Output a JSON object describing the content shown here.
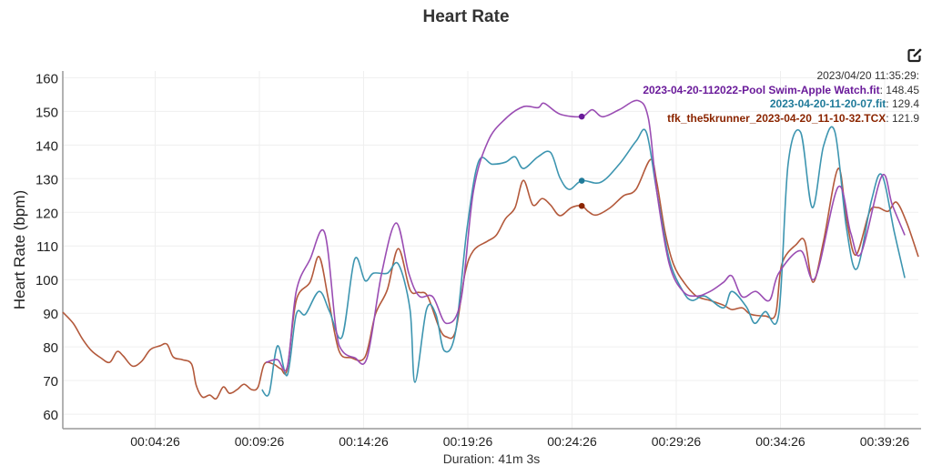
{
  "chart_data": {
    "type": "line",
    "title": "Heart Rate",
    "xlabel": "Duration: 41m 3s",
    "ylabel": "Heart Rate (bpm)",
    "x_unit": "minutes",
    "xlim": [
      0,
      41.05
    ],
    "ylim": [
      55.7,
      162
    ],
    "yticks": [
      60,
      70,
      80,
      90,
      100,
      110,
      120,
      130,
      140,
      150,
      160
    ],
    "xticks": [
      {
        "value": 4.433,
        "label": "00:04:26"
      },
      {
        "value": 9.433,
        "label": "00:09:26"
      },
      {
        "value": 14.433,
        "label": "00:14:26"
      },
      {
        "value": 19.433,
        "label": "00:19:26"
      },
      {
        "value": 24.433,
        "label": "00:24:26"
      },
      {
        "value": 29.433,
        "label": "00:29:26"
      },
      {
        "value": 34.433,
        "label": "00:34:26"
      },
      {
        "value": 39.433,
        "label": "00:39:26"
      }
    ],
    "grid": true,
    "legend": "top-right tooltip",
    "hover": {
      "x": 24.9,
      "timestamp": "2023/04/20 11:35:29:",
      "values": [
        "148.45",
        "129.4",
        "121.9"
      ]
    },
    "series": [
      {
        "name": "2023-04-20-112022-Pool Swim-Apple Watch.fit",
        "color": "#9a4db3",
        "label_color": "#6a1b9a",
        "x": [
          9.75,
          10.3,
          10.77,
          11.2,
          11.86,
          12.56,
          13.1,
          13.4,
          14.0,
          14.6,
          15.3,
          16.0,
          16.6,
          17.1,
          17.75,
          18.4,
          19.1,
          19.7,
          20.4,
          21.24,
          22.1,
          22.8,
          23.1,
          23.85,
          24.9,
          25.4,
          25.9,
          26.7,
          27.6,
          28.1,
          28.5,
          29.1,
          29.76,
          30.4,
          31.06,
          31.7,
          32.1,
          32.6,
          33.25,
          33.9,
          34.35,
          35.4,
          36.1,
          37.2,
          37.8,
          38.3,
          39.3,
          39.8,
          40.4
        ],
        "y": [
          75.4,
          76.2,
          74,
          96.5,
          106,
          114,
          85.7,
          78.9,
          76.8,
          76.8,
          101.9,
          116.8,
          101.9,
          95.1,
          94.9,
          87,
          93.8,
          126.2,
          141.1,
          147.8,
          151.4,
          151.1,
          152.4,
          149.2,
          148.45,
          150.5,
          148.4,
          150.5,
          153.2,
          147.8,
          126.2,
          104.6,
          96.5,
          95.1,
          96.5,
          99.2,
          101.1,
          94.9,
          96.5,
          93.8,
          101.9,
          108.6,
          100.5,
          127.5,
          114,
          107.8,
          130.8,
          122.2,
          113.2
        ]
      },
      {
        "name": "2023-04-20-11-20-07.fit",
        "color": "#3d95b0",
        "label_color": "#1f7a99",
        "x": [
          9.55,
          9.9,
          10.3,
          10.77,
          11.2,
          11.64,
          12.3,
          12.8,
          13.4,
          14.0,
          14.5,
          14.9,
          15.57,
          16.1,
          16.66,
          16.9,
          17.45,
          17.9,
          18.3,
          18.84,
          19.4,
          19.95,
          20.6,
          21.24,
          21.7,
          22.1,
          22.8,
          23.4,
          23.85,
          24.3,
          24.9,
          25.8,
          26.7,
          27.5,
          28.0,
          28.5,
          29.1,
          29.76,
          30.2,
          30.8,
          31.7,
          32.1,
          32.8,
          33.2,
          33.7,
          34.35,
          34.8,
          35.4,
          35.96,
          36.5,
          37.05,
          37.6,
          38.1,
          38.8,
          39.3,
          39.9,
          40.4
        ],
        "y": [
          67.3,
          66.2,
          80.3,
          71.6,
          89.7,
          89.7,
          96.5,
          90.5,
          83,
          106,
          99.7,
          101.9,
          101.9,
          104.6,
          91.1,
          69.5,
          91.1,
          89.7,
          78.9,
          84.3,
          115.4,
          135.1,
          134.3,
          134.9,
          136.5,
          133,
          136.5,
          137.8,
          130.3,
          126.8,
          129.4,
          128.9,
          134.3,
          141.1,
          143.8,
          126.2,
          106,
          96.5,
          93.8,
          95.1,
          91.6,
          96.5,
          91.9,
          87,
          90.5,
          89.7,
          134.3,
          143.8,
          121.4,
          139.7,
          143.8,
          115.4,
          103.2,
          123.5,
          131.1,
          114,
          100.5
        ]
      },
      {
        "name": "tfk_the5krunner_2023-04-20_11-10-32.TCX",
        "color": "#b3593b",
        "label_color": "#8b2500",
        "x": [
          0,
          0.5,
          0.94,
          1.37,
          1.81,
          2.25,
          2.6,
          2.9,
          3.34,
          3.78,
          4.2,
          4.65,
          5.0,
          5.3,
          5.74,
          6.18,
          6.4,
          6.7,
          7.05,
          7.36,
          7.7,
          8.0,
          8.36,
          8.7,
          9.06,
          9.37,
          9.67,
          10.1,
          10.46,
          10.77,
          11.2,
          11.86,
          12.3,
          12.74,
          13.25,
          13.82,
          14.5,
          15.0,
          15.57,
          16.1,
          16.66,
          17.1,
          17.5,
          18.06,
          18.4,
          18.84,
          19.3,
          19.7,
          20.37,
          20.8,
          21.24,
          21.7,
          22.1,
          22.55,
          23.0,
          23.4,
          23.85,
          24.4,
          24.9,
          25.2,
          25.6,
          26.27,
          26.9,
          27.5,
          28.2,
          28.5,
          28.9,
          29.3,
          29.8,
          30.4,
          31.06,
          31.7,
          32.1,
          32.6,
          33.0,
          33.7,
          34.2,
          34.5,
          35.2,
          35.6,
          36.0,
          36.5,
          37.2,
          37.6,
          38.05,
          38.7,
          39.1,
          39.6,
          40.0,
          40.5,
          41.05
        ],
        "y": [
          90.3,
          87,
          82.4,
          78.9,
          76.8,
          75.4,
          78.6,
          77.3,
          74.3,
          75.7,
          79.2,
          80.3,
          80.8,
          77,
          76.2,
          74.9,
          68.6,
          65.1,
          65.7,
          64.6,
          68.1,
          66.2,
          67.3,
          68.9,
          67.3,
          68.1,
          74.9,
          74.9,
          73.5,
          73.5,
          93.8,
          99.2,
          106.8,
          94.3,
          78.9,
          76.8,
          77,
          89.7,
          97,
          109.2,
          97,
          96.2,
          95.1,
          85.7,
          83,
          84.6,
          101.9,
          108.6,
          111.4,
          113.2,
          118.1,
          121.4,
          129.5,
          122.2,
          124.1,
          122.2,
          119,
          121.4,
          121.9,
          120.3,
          119.2,
          121.4,
          124.9,
          126.8,
          135.7,
          128.9,
          114,
          104.6,
          99.2,
          95.1,
          93.8,
          92.4,
          91.1,
          91.6,
          89.7,
          89.2,
          89.7,
          104.6,
          110.5,
          111.4,
          99.2,
          111.4,
          133,
          118.1,
          107.3,
          120,
          121.4,
          120.3,
          123,
          116.8,
          106.8
        ]
      }
    ]
  },
  "toolbar": {
    "edit_icon": "edit-icon"
  }
}
